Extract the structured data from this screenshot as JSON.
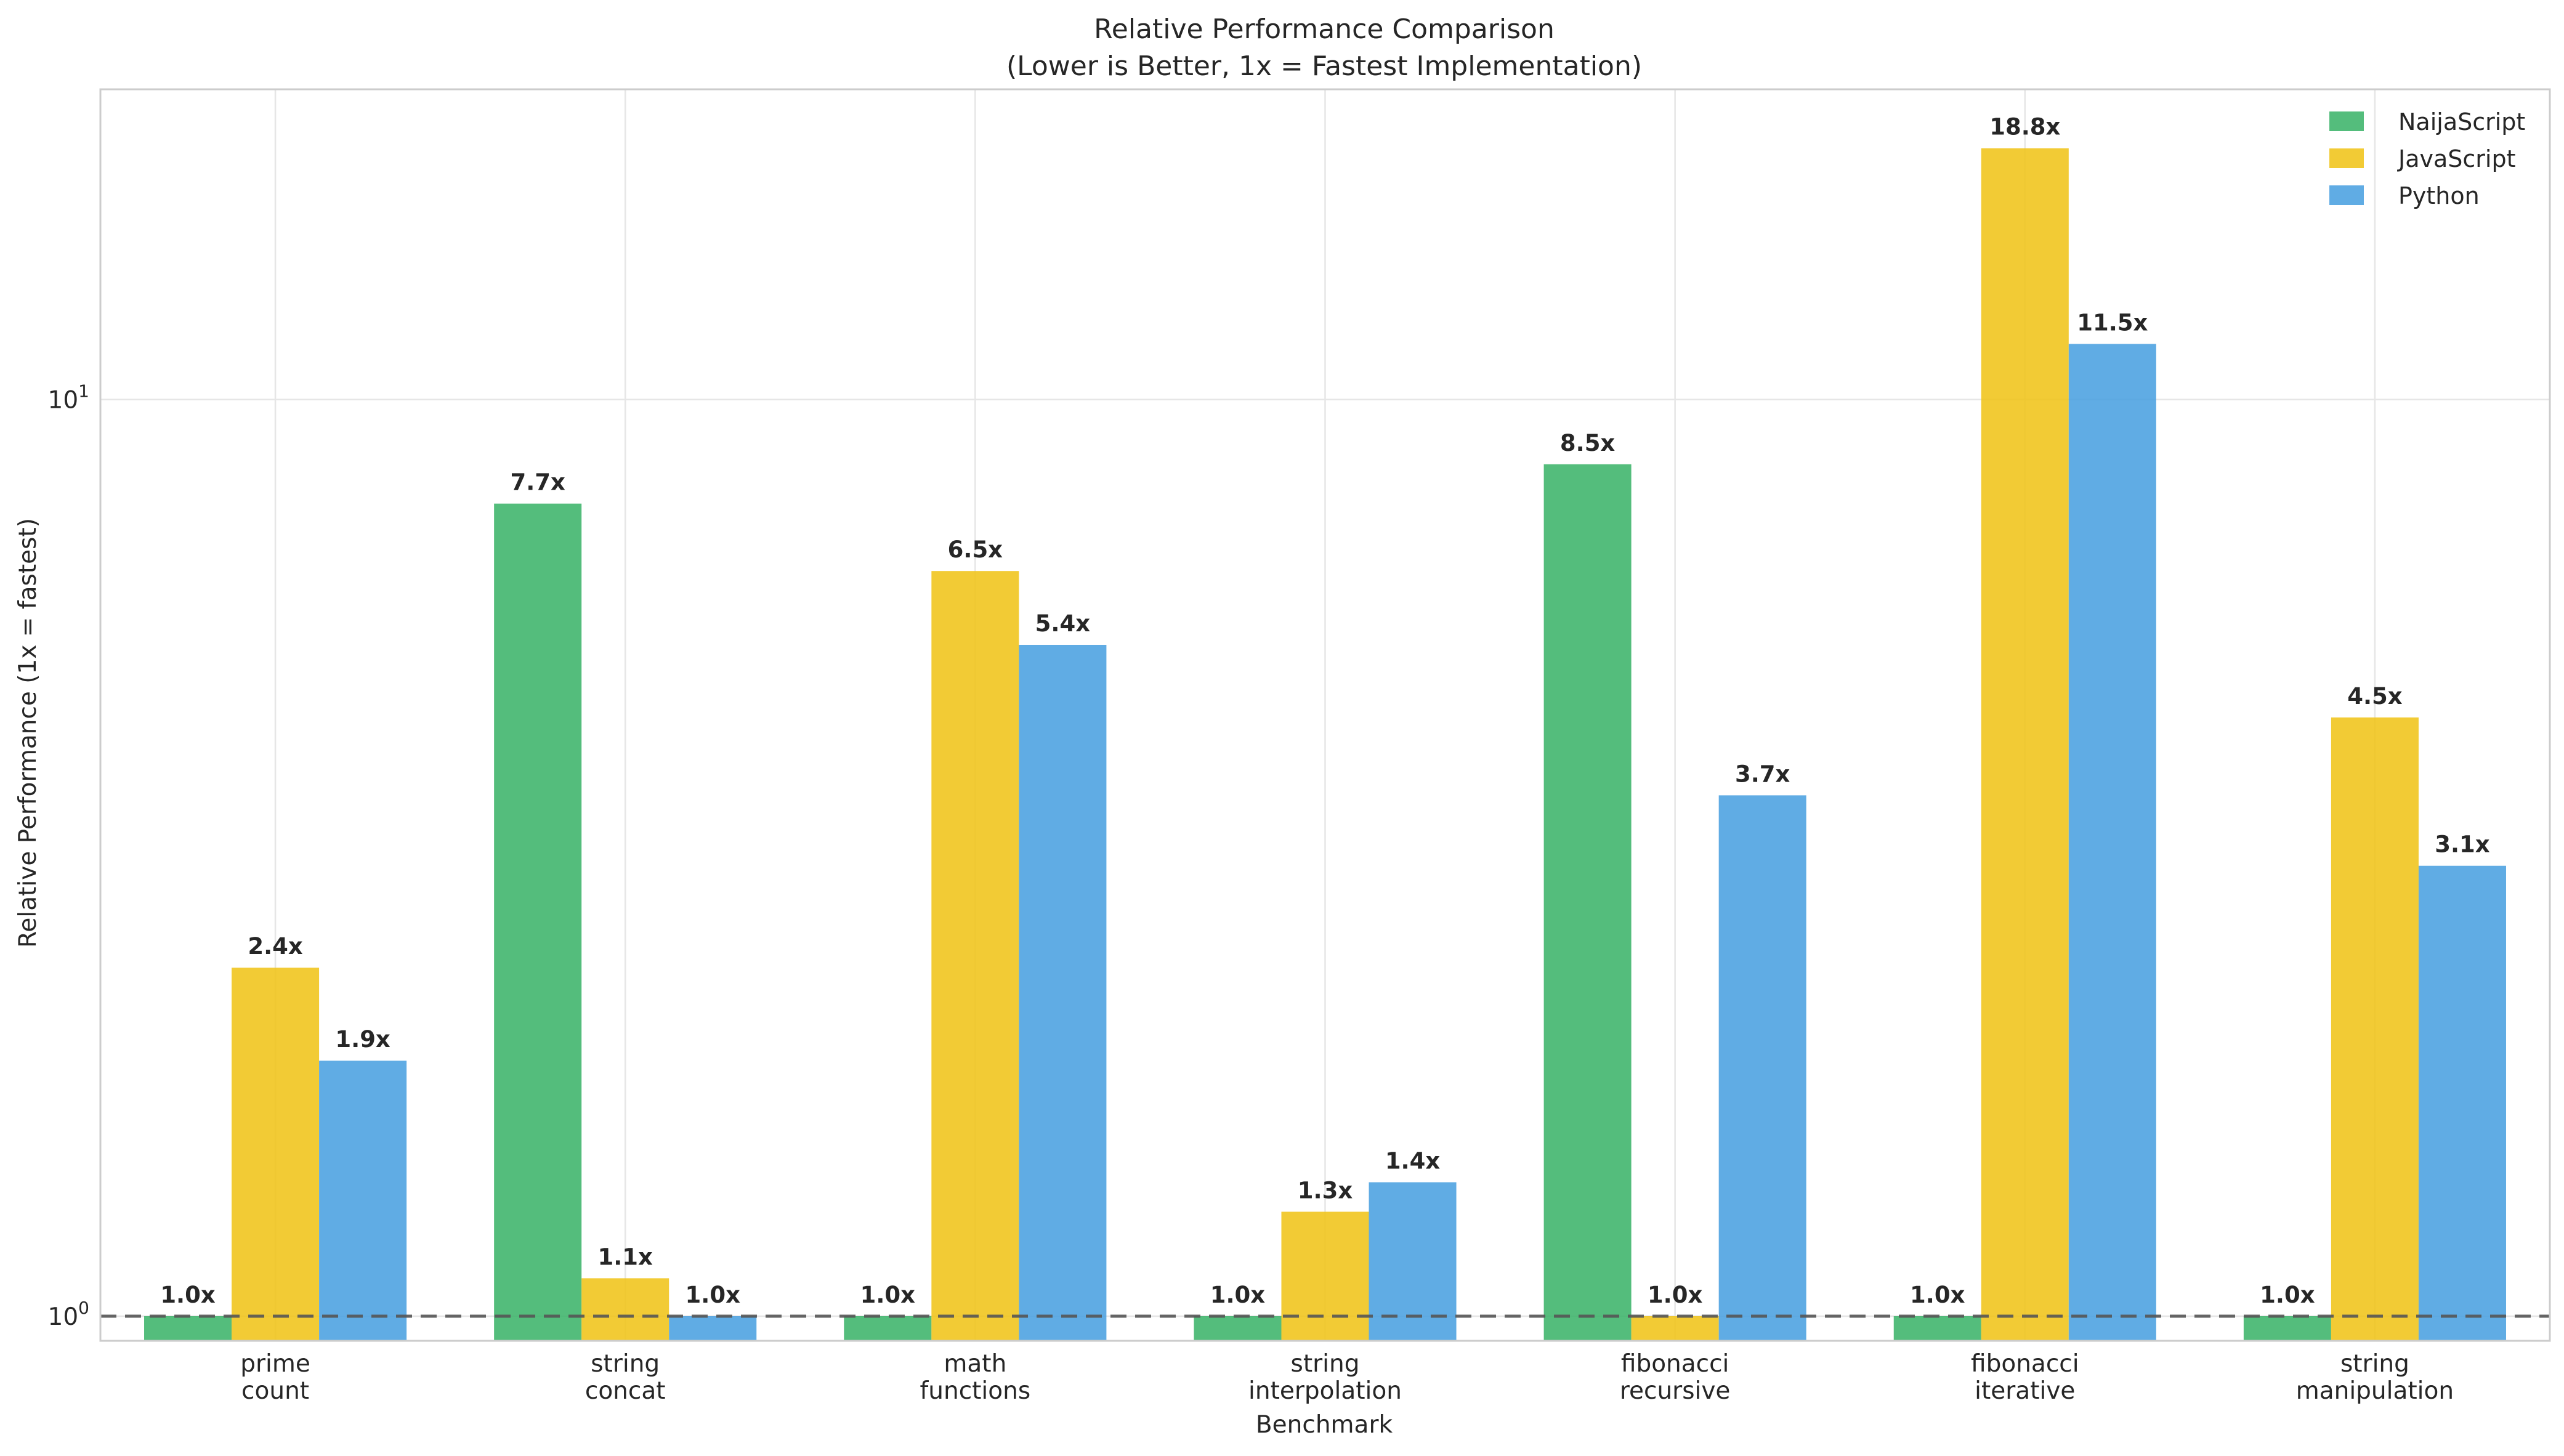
{
  "chart_data": {
    "type": "bar",
    "title": "Relative Performance Comparison",
    "subtitle": "(Lower is Better, 1x = Fastest Implementation)",
    "xlabel": "Benchmark",
    "ylabel": "Relative Performance (1x = fastest)",
    "yscale": "log",
    "ylim": [
      0.94,
      21.8
    ],
    "y_ticks": [
      {
        "value": 1,
        "base": "10",
        "exp": "0"
      },
      {
        "value": 10,
        "base": "10",
        "exp": "1"
      }
    ],
    "reference_line": {
      "value": 1,
      "style": "dashed"
    },
    "grid": true,
    "legend_position": "top-right",
    "categories": [
      [
        "prime",
        "count"
      ],
      [
        "string",
        "concat"
      ],
      [
        "math",
        "functions"
      ],
      [
        "string",
        "interpolation"
      ],
      [
        "fibonacci",
        "recursive"
      ],
      [
        "fibonacci",
        "iterative"
      ],
      [
        "string",
        "manipulation"
      ]
    ],
    "series": [
      {
        "name": "NaijaScript",
        "color": "#3cb46a",
        "values": [
          1.0,
          7.7,
          1.0,
          1.0,
          8.5,
          1.0,
          1.0
        ],
        "labels": [
          "1.0x",
          "7.7x",
          "1.0x",
          "1.0x",
          "8.5x",
          "1.0x",
          "1.0x"
        ]
      },
      {
        "name": "JavaScript",
        "color": "#f0c419",
        "values": [
          2.4,
          1.1,
          6.5,
          1.3,
          1.0,
          18.8,
          4.5
        ],
        "labels": [
          "2.4x",
          "1.1x",
          "6.5x",
          "1.3x",
          "1.0x",
          "18.8x",
          "4.5x"
        ]
      },
      {
        "name": "Python",
        "color": "#4aa0e0",
        "values": [
          1.9,
          1.0,
          5.4,
          1.4,
          3.7,
          11.5,
          3.1
        ],
        "labels": [
          "1.9x",
          "1.0x",
          "5.4x",
          "1.4x",
          "3.7x",
          "11.5x",
          "3.1x"
        ]
      }
    ]
  }
}
